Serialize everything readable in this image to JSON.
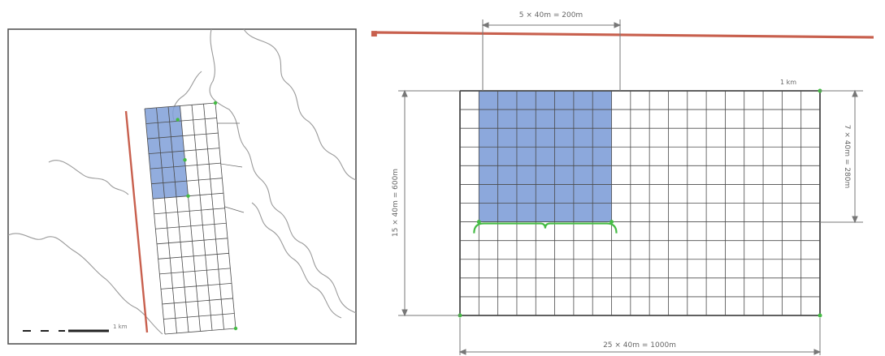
{
  "colors": {
    "background": "#ffffff",
    "frame": "#555555",
    "coastline": "#9a9a9a",
    "grid": "#4a4a4a",
    "blue_fill": "#7f9fd8",
    "red_line": "#c8604e",
    "green_marker": "#44bb44",
    "dimension": "#777777",
    "label_text": "#666666"
  },
  "left_panel": {
    "scale_bar_label": "1 km",
    "survey_grid": {
      "columns": 6,
      "rows": 15,
      "shaded_columns": 3,
      "shaded_rows": 6
    }
  },
  "right_panel": {
    "grid": {
      "columns": 19,
      "rows": 12,
      "shaded_columns": 7,
      "shaded_rows": 7
    },
    "top_dimension": "5 × 40m = 200m",
    "bottom_dimension": "25 × 40m = 1000m",
    "left_dimension": "15 × 40m = 600m",
    "right_dimension": "7 × 40m = 280m",
    "corner_label": "1 km"
  }
}
